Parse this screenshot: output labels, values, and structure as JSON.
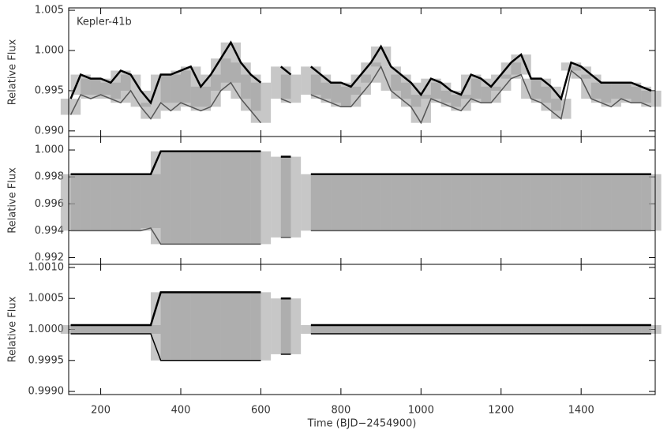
{
  "chart_data": [
    {
      "type": "band",
      "ylabel": "Relative Flux",
      "annotation": "Kepler-41b",
      "xlim": [
        120,
        1585
      ],
      "ylim": [
        0.9893,
        1.0053
      ],
      "yticks": [
        {
          "value": 0.99,
          "label": "0.990"
        },
        {
          "value": 0.995,
          "label": "0.995"
        },
        {
          "value": 1.0,
          "label": "1.000"
        },
        {
          "value": 1.005,
          "label": "1.005"
        }
      ],
      "x": [
        125,
        150,
        175,
        200,
        225,
        250,
        275,
        300,
        325,
        350,
        375,
        400,
        425,
        450,
        475,
        500,
        525,
        550,
        575,
        600,
        625,
        650,
        675,
        700,
        725,
        750,
        775,
        800,
        825,
        850,
        875,
        900,
        925,
        950,
        975,
        1000,
        1025,
        1050,
        1075,
        1100,
        1125,
        1150,
        1175,
        1200,
        1225,
        1250,
        1275,
        1300,
        1325,
        1350,
        1375,
        1400,
        1425,
        1450,
        1475,
        1500,
        1525,
        1550,
        1575
      ],
      "series": [
        {
          "color": "#000000",
          "values": [
            0.994,
            0.997,
            0.9965,
            0.9965,
            0.996,
            0.9975,
            0.997,
            0.995,
            0.9935,
            0.997,
            0.997,
            0.9975,
            0.998,
            0.9955,
            0.997,
            0.999,
            1.001,
            0.9985,
            0.997,
            0.996,
            null,
            0.998,
            0.997,
            null,
            0.998,
            0.997,
            0.996,
            0.996,
            0.9955,
            0.997,
            0.9985,
            1.0005,
            0.998,
            0.997,
            0.996,
            0.9945,
            0.9965,
            0.996,
            0.995,
            0.9945,
            0.997,
            0.9965,
            0.9955,
            0.997,
            0.9985,
            0.9995,
            0.9965,
            0.9965,
            0.9955,
            0.994,
            0.9985,
            0.998,
            0.997,
            0.996,
            0.996,
            0.996,
            0.996,
            0.9955,
            0.995
          ]
        },
        {
          "color": "#555555",
          "values": [
            0.992,
            0.9945,
            0.994,
            0.9945,
            0.994,
            0.9935,
            0.995,
            0.993,
            0.9915,
            0.9935,
            0.9925,
            0.9935,
            0.993,
            0.9925,
            0.993,
            0.995,
            0.996,
            0.994,
            0.9925,
            0.991,
            null,
            0.994,
            0.9935,
            null,
            0.9945,
            0.994,
            0.9935,
            0.993,
            0.993,
            0.9945,
            0.996,
            0.998,
            0.995,
            0.994,
            0.993,
            0.991,
            0.994,
            0.9935,
            0.993,
            0.9925,
            0.994,
            0.9935,
            0.9935,
            0.995,
            0.9965,
            0.997,
            0.994,
            0.9935,
            0.9925,
            0.9915,
            0.9975,
            0.9965,
            0.994,
            0.9935,
            0.993,
            0.994,
            0.9935,
            0.9935,
            0.993
          ]
        }
      ]
    },
    {
      "type": "band",
      "ylabel": "Relative Flux",
      "xlim": [
        120,
        1585
      ],
      "ylim": [
        0.9915,
        1.001
      ],
      "yticks": [
        {
          "value": 0.992,
          "label": "0.992"
        },
        {
          "value": 0.994,
          "label": "0.994"
        },
        {
          "value": 0.996,
          "label": "0.996"
        },
        {
          "value": 0.998,
          "label": "0.998"
        },
        {
          "value": 1.0,
          "label": "1.000"
        }
      ],
      "x": [
        125,
        150,
        175,
        200,
        225,
        250,
        275,
        300,
        325,
        350,
        375,
        400,
        425,
        450,
        475,
        500,
        525,
        550,
        575,
        600,
        625,
        650,
        675,
        700,
        725,
        750,
        775,
        800,
        825,
        850,
        875,
        900,
        925,
        950,
        975,
        1000,
        1025,
        1050,
        1075,
        1100,
        1125,
        1150,
        1175,
        1200,
        1225,
        1250,
        1275,
        1300,
        1325,
        1350,
        1375,
        1400,
        1425,
        1450,
        1475,
        1500,
        1525,
        1550,
        1575
      ],
      "series": [
        {
          "color": "#000000",
          "values": [
            0.9982,
            0.9982,
            0.9982,
            0.9982,
            0.9982,
            0.9982,
            0.9982,
            0.9982,
            0.9982,
            0.9999,
            0.9999,
            0.9999,
            0.9999,
            0.9999,
            0.9999,
            0.9999,
            0.9999,
            0.9999,
            0.9999,
            0.9999,
            null,
            0.9995,
            0.9995,
            null,
            0.9982,
            0.9982,
            0.9982,
            0.9982,
            0.9982,
            0.9982,
            0.9982,
            0.9982,
            0.9982,
            0.9982,
            0.9982,
            0.9982,
            0.9982,
            0.9982,
            0.9982,
            0.9982,
            0.9982,
            0.9982,
            0.9982,
            0.9982,
            0.9982,
            0.9982,
            0.9982,
            0.9982,
            0.9982,
            0.9982,
            0.9982,
            0.9982,
            0.9982,
            0.9982,
            0.9982,
            0.9982,
            0.9982,
            0.9982,
            0.9982
          ]
        },
        {
          "color": "#555555",
          "values": [
            0.994,
            0.994,
            0.994,
            0.994,
            0.994,
            0.994,
            0.994,
            0.994,
            0.9942,
            0.993,
            0.993,
            0.993,
            0.993,
            0.993,
            0.993,
            0.993,
            0.993,
            0.993,
            0.993,
            0.993,
            null,
            0.9935,
            0.9935,
            null,
            0.994,
            0.994,
            0.994,
            0.994,
            0.994,
            0.994,
            0.994,
            0.994,
            0.994,
            0.994,
            0.994,
            0.994,
            0.994,
            0.994,
            0.994,
            0.994,
            0.994,
            0.994,
            0.994,
            0.994,
            0.994,
            0.994,
            0.994,
            0.994,
            0.994,
            0.994,
            0.994,
            0.994,
            0.994,
            0.994,
            0.994,
            0.994,
            0.994,
            0.994,
            0.994
          ]
        }
      ]
    },
    {
      "type": "band",
      "ylabel": "Relative Flux",
      "xlabel": "Time (BJD−2454900)",
      "xlim": [
        120,
        1585
      ],
      "ylim": [
        0.99895,
        1.00105
      ],
      "xticks": [
        200,
        400,
        600,
        800,
        1000,
        1200,
        1400
      ],
      "yticks": [
        {
          "value": 0.999,
          "label": "0.9990"
        },
        {
          "value": 0.9995,
          "label": "0.9995"
        },
        {
          "value": 1.0,
          "label": "1.0000"
        },
        {
          "value": 1.0005,
          "label": "1.0005"
        },
        {
          "value": 1.001,
          "label": "1.0010"
        }
      ],
      "x": [
        125,
        150,
        175,
        200,
        225,
        250,
        275,
        300,
        325,
        350,
        375,
        400,
        425,
        450,
        475,
        500,
        525,
        550,
        575,
        600,
        625,
        650,
        675,
        700,
        725,
        750,
        775,
        800,
        825,
        850,
        875,
        900,
        925,
        950,
        975,
        1000,
        1025,
        1050,
        1075,
        1100,
        1125,
        1150,
        1175,
        1200,
        1225,
        1250,
        1275,
        1300,
        1325,
        1350,
        1375,
        1400,
        1425,
        1450,
        1475,
        1500,
        1525,
        1550,
        1575
      ],
      "series": [
        {
          "color": "#000000",
          "values": [
            1.00007,
            1.00007,
            1.00007,
            1.00007,
            1.00007,
            1.00007,
            1.00007,
            1.00007,
            1.00007,
            1.0006,
            1.0006,
            1.0006,
            1.0006,
            1.0006,
            1.0006,
            1.0006,
            1.0006,
            1.0006,
            1.0006,
            1.0006,
            null,
            1.0005,
            1.0005,
            null,
            1.00007,
            1.00007,
            1.00007,
            1.00007,
            1.00007,
            1.00007,
            1.00007,
            1.00007,
            1.00007,
            1.00007,
            1.00007,
            1.00007,
            1.00007,
            1.00007,
            1.00007,
            1.00007,
            1.00007,
            1.00007,
            1.00007,
            1.00007,
            1.00007,
            1.00007,
            1.00007,
            1.00007,
            1.00007,
            1.00007,
            1.00007,
            1.00007,
            1.00007,
            1.00007,
            1.00007,
            1.00007,
            1.00007,
            1.00007,
            1.00007
          ]
        },
        {
          "color": "#000000",
          "values": [
            0.99993,
            0.99993,
            0.99993,
            0.99993,
            0.99993,
            0.99993,
            0.99993,
            0.99993,
            0.99993,
            0.9995,
            0.9995,
            0.9995,
            0.9995,
            0.9995,
            0.9995,
            0.9995,
            0.9995,
            0.9995,
            0.9995,
            0.9995,
            null,
            0.9996,
            0.9996,
            null,
            0.99993,
            0.99993,
            0.99993,
            0.99993,
            0.99993,
            0.99993,
            0.99993,
            0.99993,
            0.99993,
            0.99993,
            0.99993,
            0.99993,
            0.99993,
            0.99993,
            0.99993,
            0.99993,
            0.99993,
            0.99993,
            0.99993,
            0.99993,
            0.99993,
            0.99993,
            0.99993,
            0.99993,
            0.99993,
            0.99993,
            0.99993,
            0.99993,
            0.99993,
            0.99993,
            0.99993,
            0.99993,
            0.99993,
            0.99993,
            0.99993
          ]
        }
      ]
    }
  ]
}
